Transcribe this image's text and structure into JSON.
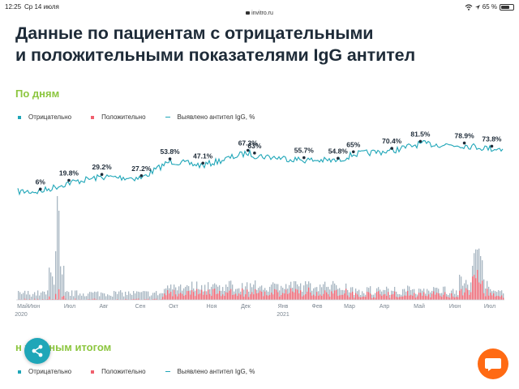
{
  "status_bar": {
    "time": "12:25",
    "date": "Ср 14 июля",
    "url": "invitro.ru",
    "battery": "65 %",
    "battery_level": 0.65
  },
  "page": {
    "title_line1": "Данные по пациентам с отрицательными",
    "title_line2": "и положительными показателями IgG антител",
    "section1_title": "По дням",
    "section2_title": "Нарастающим итогом",
    "section2_visible": "н       тельным итогом"
  },
  "legend": {
    "negative": "Отрицательно",
    "positive": "Положительно",
    "igg": "Выявлено антител IgG, %"
  },
  "colors": {
    "negative": "#1fa6b8",
    "positive": "#f0606e",
    "line": "#1fa6b8",
    "section": "#8cc63f",
    "chat": "#ff6a13"
  },
  "icons": {
    "share": "share-icon",
    "chat": "chat-bubble-icon"
  },
  "chart_data": {
    "type": "line",
    "title": "",
    "series": [
      {
        "name": "Выявлено антител IgG, %",
        "x": [
          "2020-05-20",
          "2020-06-15",
          "2020-07-15",
          "2020-08-20",
          "2020-09-15",
          "2020-10-15",
          "2020-11-25",
          "2020-12-01",
          "2021-01-15",
          "2021-02-15",
          "2021-03-01",
          "2021-04-05",
          "2021-05-01",
          "2021-06-10",
          "2021-07-05"
        ],
        "values": [
          6,
          19.8,
          29.2,
          27.2,
          53.8,
          47.1,
          67.3,
          63,
          55.7,
          54.8,
          65,
          70.4,
          81.5,
          78.9,
          73.8
        ]
      }
    ],
    "annotations": [
      "6%",
      "19.8%",
      "29.2%",
      "27.2%",
      "53.8%",
      "47.1%",
      "67.3%",
      "63%",
      "55.7%",
      "54.8%",
      "65%",
      "70.4%",
      "81.5%",
      "78.9%",
      "73.8%"
    ],
    "x_ticks": [
      "Май",
      "Июн",
      "Июл",
      "Авг",
      "Сен",
      "Окт",
      "Ноя",
      "Дек",
      "Янв",
      "Фев",
      "Мар",
      "Апр",
      "Май",
      "Июн",
      "Июл"
    ],
    "year_labels": [
      "2020",
      "2021"
    ],
    "grid": false,
    "legend_position": "top-left"
  }
}
